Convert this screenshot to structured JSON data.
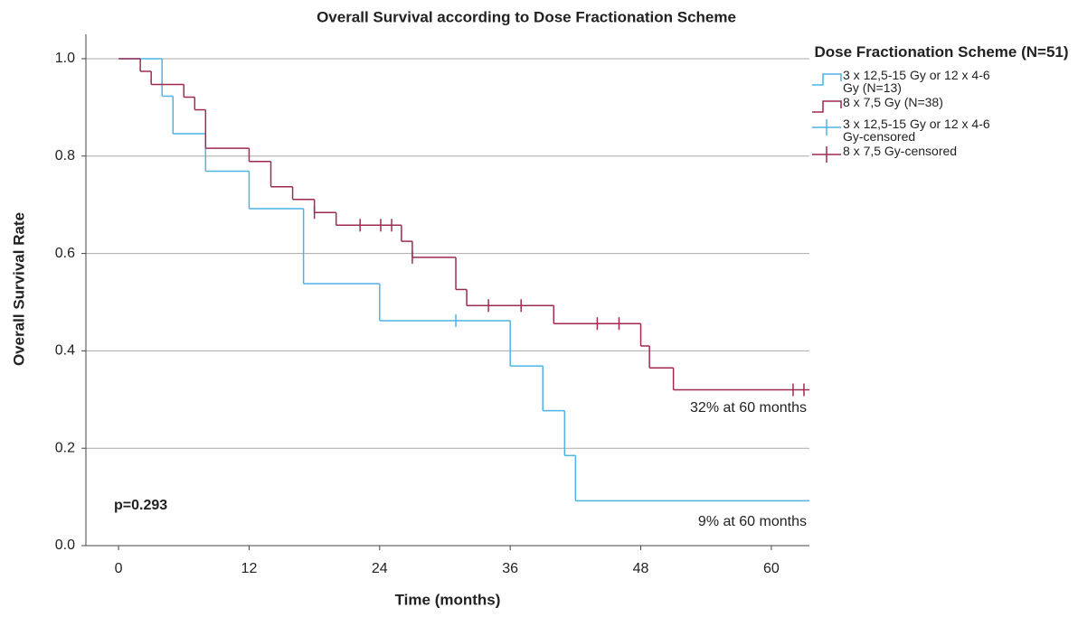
{
  "chart_data": {
    "type": "step",
    "title": "Overall Survival according to Dose Fractionation Scheme",
    "x_label": "Time (months)",
    "y_label": "Overall Survival Rate",
    "legend_title": "Dose Fractionation Scheme (N=51)",
    "legend_position": "right",
    "grid": true,
    "xlim": [
      -3,
      63.5
    ],
    "ylim": [
      0,
      1.05
    ],
    "xticks": [
      0,
      12,
      24,
      36,
      48,
      60
    ],
    "yticks": [
      {
        "value": 0,
        "label": "0.0"
      },
      0.2,
      0.4,
      0.6,
      0.8,
      {
        "value": 1,
        "label": "1.0"
      }
    ],
    "series": [
      {
        "name": "3 x 12,5-15 Gy or 12 x 4-6 Gy (N=13)",
        "color": "#4db3e6",
        "kind": "curve",
        "x": [
          0,
          4,
          5,
          8,
          12,
          17,
          24,
          36,
          39,
          41,
          42
        ],
        "values": [
          1,
          0.923,
          0.846,
          0.769,
          0.692,
          0.538,
          0.462,
          0.369,
          0.277,
          0.185,
          0.092
        ]
      },
      {
        "name": "8 x 7,5 Gy (N=38)",
        "color": "#9e2a52",
        "kind": "curve",
        "x": [
          0,
          2,
          3,
          6,
          7,
          8,
          12,
          14,
          16,
          18,
          20,
          26,
          27,
          31,
          32,
          40,
          48,
          48.8,
          51
        ],
        "values": [
          1,
          0.974,
          0.947,
          0.921,
          0.895,
          0.816,
          0.789,
          0.737,
          0.711,
          0.684,
          0.658,
          0.625,
          0.592,
          0.526,
          0.493,
          0.456,
          0.41,
          0.365,
          0.32
        ]
      },
      {
        "name": "3 x 12,5-15 Gy or 12 x 4-6 Gy-censored",
        "color": "#4db3e6",
        "kind": "censored",
        "x": [
          31
        ],
        "values": [
          0.462
        ]
      },
      {
        "name": "8 x 7,5 Gy-censored",
        "color": "#9e2a52",
        "kind": "censored",
        "x": [
          18,
          22.2,
          24.1,
          25.1,
          27,
          34,
          37,
          44,
          46,
          62,
          63
        ],
        "values": [
          0.684,
          0.658,
          0.658,
          0.658,
          0.592,
          0.493,
          0.493,
          0.456,
          0.456,
          0.32,
          0.32
        ]
      }
    ],
    "annotations": [
      "32% at 60 months",
      "9% at 60 months",
      "p=0.293"
    ]
  }
}
